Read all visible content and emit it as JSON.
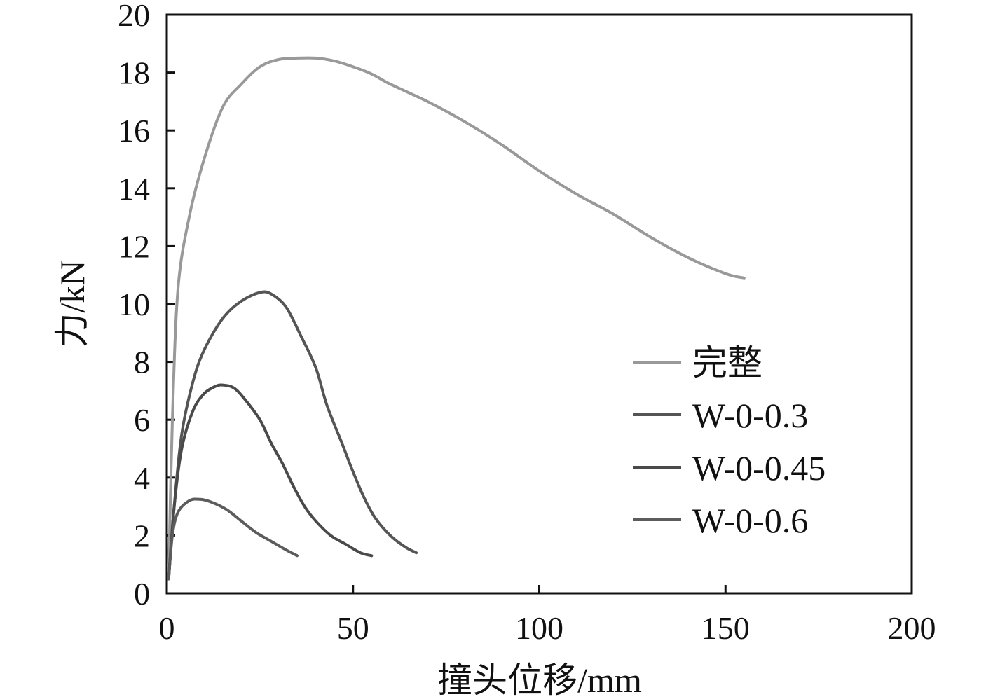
{
  "chart_data": {
    "type": "line",
    "title": "",
    "xlabel": "撞头位移/mm",
    "ylabel": "力/kN",
    "xlim": [
      0,
      200
    ],
    "ylim": [
      0,
      20
    ],
    "xticks": [
      0,
      50,
      100,
      150,
      200
    ],
    "yticks": [
      0,
      2,
      4,
      6,
      8,
      10,
      12,
      14,
      16,
      18,
      20
    ],
    "grid": false,
    "legend_position": "right",
    "series": [
      {
        "name": "完整",
        "color": "#999999",
        "points": [
          [
            0.5,
            0.5
          ],
          [
            1.5,
            6
          ],
          [
            3,
            10.5
          ],
          [
            6,
            13
          ],
          [
            10,
            15
          ],
          [
            15,
            16.8
          ],
          [
            20,
            17.6
          ],
          [
            25,
            18.2
          ],
          [
            30,
            18.45
          ],
          [
            35,
            18.5
          ],
          [
            40,
            18.5
          ],
          [
            45,
            18.4
          ],
          [
            50,
            18.2
          ],
          [
            55,
            17.95
          ],
          [
            60,
            17.6
          ],
          [
            70,
            17
          ],
          [
            80,
            16.3
          ],
          [
            90,
            15.5
          ],
          [
            100,
            14.6
          ],
          [
            110,
            13.8
          ],
          [
            120,
            13.1
          ],
          [
            130,
            12.3
          ],
          [
            140,
            11.6
          ],
          [
            150,
            11.05
          ],
          [
            155,
            10.9
          ]
        ]
      },
      {
        "name": "W-0-0.3",
        "color": "#555555",
        "points": [
          [
            0.5,
            0.5
          ],
          [
            2,
            3
          ],
          [
            4,
            5.5
          ],
          [
            7,
            7.3
          ],
          [
            10,
            8.4
          ],
          [
            15,
            9.5
          ],
          [
            20,
            10.1
          ],
          [
            25,
            10.4
          ],
          [
            28,
            10.35
          ],
          [
            32,
            9.9
          ],
          [
            36,
            8.9
          ],
          [
            40,
            7.8
          ],
          [
            43,
            6.5
          ],
          [
            47,
            5.2
          ],
          [
            50,
            4.2
          ],
          [
            53,
            3.3
          ],
          [
            56,
            2.6
          ],
          [
            60,
            2
          ],
          [
            64,
            1.6
          ],
          [
            67,
            1.4
          ]
        ]
      },
      {
        "name": "W-0-0.45",
        "color": "#4a4a4a",
        "points": [
          [
            0.5,
            0.5
          ],
          [
            2,
            3
          ],
          [
            4,
            5
          ],
          [
            7,
            6.3
          ],
          [
            10,
            6.9
          ],
          [
            13,
            7.15
          ],
          [
            15,
            7.2
          ],
          [
            18,
            7.1
          ],
          [
            21,
            6.7
          ],
          [
            25,
            6
          ],
          [
            28,
            5.2
          ],
          [
            31,
            4.5
          ],
          [
            34,
            3.7
          ],
          [
            37,
            3
          ],
          [
            40,
            2.5
          ],
          [
            44,
            2
          ],
          [
            48,
            1.7
          ],
          [
            52,
            1.4
          ],
          [
            55,
            1.3
          ]
        ]
      },
      {
        "name": "W-0-0.6",
        "color": "#5c5c5c",
        "points": [
          [
            0.5,
            0.5
          ],
          [
            1.5,
            2
          ],
          [
            3,
            2.8
          ],
          [
            6,
            3.2
          ],
          [
            9,
            3.25
          ],
          [
            12,
            3.15
          ],
          [
            16,
            2.9
          ],
          [
            20,
            2.5
          ],
          [
            24,
            2.1
          ],
          [
            28,
            1.8
          ],
          [
            32,
            1.5
          ],
          [
            35,
            1.3
          ]
        ]
      }
    ]
  }
}
